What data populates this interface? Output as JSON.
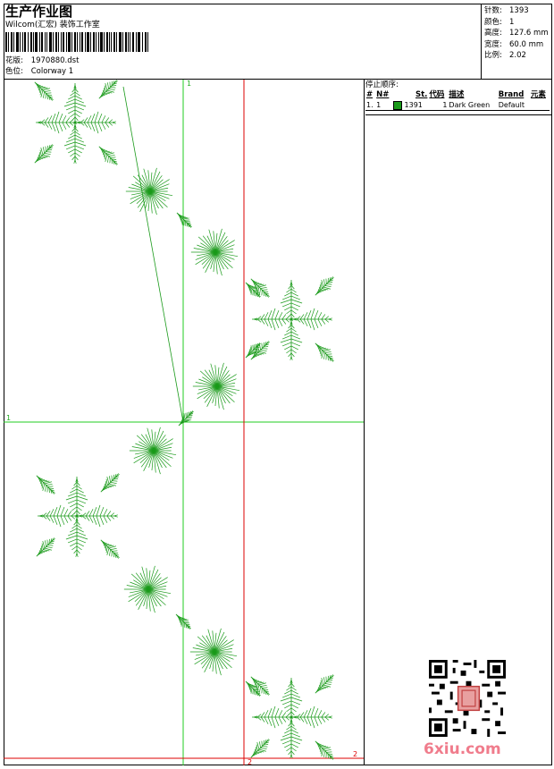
{
  "header": {
    "title": "生产作业图",
    "company": "Wilcom(汇宏) 装饰工作室",
    "design_label": "花版:",
    "design_value": "1970880.dst",
    "color_label": "色位:",
    "color_value": "Colorway 1"
  },
  "stats": {
    "stitches_label": "针数:",
    "stitches_value": "1393",
    "colors_label": "颜色:",
    "colors_value": "1",
    "height_label": "高度:",
    "height_value": "127.6 mm",
    "width_label": "宽度:",
    "width_value": "60.0 mm",
    "scale_label": "比例:",
    "scale_value": "2.02"
  },
  "stop_sequence": {
    "caption": "停止顺序:",
    "columns": [
      "#",
      "N#",
      "St.",
      "代码",
      "描述",
      "Brand",
      "元素"
    ],
    "rows": [
      {
        "idx": "1.",
        "n": "1",
        "st": "1391",
        "code": "1",
        "desc": "Dark Green",
        "brand": "Default",
        "element": ""
      }
    ],
    "swatch_color": "#1a9a1a"
  },
  "markers": {
    "green_top": "1",
    "green_left": "1",
    "red_right": "2",
    "red_bottom": "2"
  },
  "watermark": "6xiu.com",
  "colors": {
    "stitch": "#1a9a1a",
    "guide_green": "#22cc22",
    "guide_red": "#dd0000"
  }
}
